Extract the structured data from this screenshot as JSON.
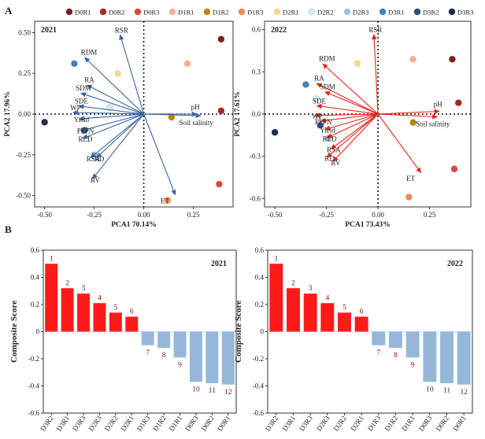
{
  "legend": [
    {
      "name": "D0R1",
      "color": "#7B1F1F"
    },
    {
      "name": "D0R2",
      "color": "#A32A2A"
    },
    {
      "name": "D0R3",
      "color": "#D84B3E"
    },
    {
      "name": "D1R1",
      "color": "#F4AE95"
    },
    {
      "name": "D1R2",
      "color": "#B8860B"
    },
    {
      "name": "D1R3",
      "color": "#F08A5D"
    },
    {
      "name": "D2R1",
      "color": "#F6D68A"
    },
    {
      "name": "D2R2",
      "color": "#D6EAF2"
    },
    {
      "name": "D2R3",
      "color": "#9EC3E0"
    },
    {
      "name": "D3R1",
      "color": "#4A7FC0"
    },
    {
      "name": "D3R2",
      "color": "#2A4E80"
    },
    {
      "name": "D3R3",
      "color": "#1E2E4A"
    }
  ],
  "panel_labels": {
    "a": "A",
    "b": "B"
  },
  "chart_data": [
    {
      "type": "scatter",
      "subtype": "pca_biplot",
      "title": "2021",
      "xlabel": "PCA1 70.14%",
      "ylabel": "PCA2 17.96%",
      "xlim": [
        -0.55,
        0.45
      ],
      "ylim": [
        -0.57,
        0.57
      ],
      "xticks": [
        -0.5,
        -0.25,
        0,
        0.25
      ],
      "xtick_labels": [
        "-0.50",
        "-0.25",
        "0.00",
        "0.25"
      ],
      "yticks": [
        -0.5,
        -0.25,
        0,
        0.25,
        0.5
      ],
      "ytick_labels": [
        "-0.50",
        "-0.25",
        "0.00",
        "0.25",
        "0.50"
      ],
      "arrow_color": "#3A63A6",
      "vectors": [
        {
          "name": "RSR",
          "x": -0.12,
          "y": 0.49
        },
        {
          "name": "RDM",
          "x": -0.3,
          "y": 0.35
        },
        {
          "name": "RA",
          "x": -0.29,
          "y": 0.18
        },
        {
          "name": "SDM",
          "x": -0.32,
          "y": 0.13
        },
        {
          "name": "SDE",
          "x": -0.33,
          "y": 0.05
        },
        {
          "name": "WP",
          "x": -0.36,
          "y": 0.01
        },
        {
          "name": "Yield",
          "x": -0.33,
          "y": -0.03
        },
        {
          "name": "PFPN",
          "x": -0.31,
          "y": -0.1
        },
        {
          "name": "RLD",
          "x": -0.31,
          "y": -0.15
        },
        {
          "name": "RSA",
          "x": -0.27,
          "y": -0.27
        },
        {
          "name": "RD",
          "x": -0.24,
          "y": -0.27
        },
        {
          "name": "RV",
          "x": -0.26,
          "y": -0.4
        },
        {
          "name": "pH",
          "x": 0.27,
          "y": 0.0
        },
        {
          "name": "Soil salinity",
          "x": 0.29,
          "y": -0.01
        },
        {
          "name": "ET",
          "x": 0.16,
          "y": -0.5
        }
      ],
      "points": [
        {
          "group": "D0R1",
          "x": 0.39,
          "y": 0.46
        },
        {
          "group": "D0R2",
          "x": 0.39,
          "y": 0.02
        },
        {
          "group": "D0R3",
          "x": 0.38,
          "y": -0.43
        },
        {
          "group": "D1R1",
          "x": 0.22,
          "y": 0.31
        },
        {
          "group": "D1R2",
          "x": 0.14,
          "y": -0.02
        },
        {
          "group": "D1R3",
          "x": 0.12,
          "y": -0.53
        },
        {
          "group": "D2R1",
          "x": -0.13,
          "y": 0.25
        },
        {
          "group": "D2R2",
          "x": -0.17,
          "y": 0.04
        },
        {
          "group": "D2R3",
          "x": -0.25,
          "y": -0.25
        },
        {
          "group": "D3R1",
          "x": -0.35,
          "y": 0.31
        },
        {
          "group": "D3R2",
          "x": -0.3,
          "y": -0.1
        },
        {
          "group": "D3R3",
          "x": -0.5,
          "y": -0.05
        }
      ]
    },
    {
      "type": "scatter",
      "subtype": "pca_biplot",
      "title": "2022",
      "xlabel": "PCA1 73.43%",
      "ylabel": "PCA2 17.61%",
      "xlim": [
        -0.55,
        0.45
      ],
      "ylim": [
        -0.66,
        0.66
      ],
      "xticks": [
        -0.5,
        -0.25,
        0,
        0.25
      ],
      "xtick_labels": [
        "-0.50",
        "-0.25",
        "0.00",
        "0.25"
      ],
      "yticks": [
        -0.6,
        -0.3,
        0,
        0.3,
        0.6
      ],
      "ytick_labels": [
        "-0.6",
        "-0.3",
        "0.0",
        "0.3",
        "0.6"
      ],
      "arrow_color": "#E8231B",
      "vectors": [
        {
          "name": "RSR",
          "x": -0.02,
          "y": 0.57
        },
        {
          "name": "RDM",
          "x": -0.27,
          "y": 0.36
        },
        {
          "name": "RA",
          "x": -0.3,
          "y": 0.22
        },
        {
          "name": "SDM",
          "x": -0.26,
          "y": 0.16
        },
        {
          "name": "SDE",
          "x": -0.3,
          "y": 0.06
        },
        {
          "name": "WP",
          "x": -0.31,
          "y": -0.01
        },
        {
          "name": "PFPN",
          "x": -0.28,
          "y": -0.05
        },
        {
          "name": "Yield",
          "x": -0.26,
          "y": -0.11
        },
        {
          "name": "RLD",
          "x": -0.25,
          "y": -0.17
        },
        {
          "name": "RSA",
          "x": -0.23,
          "y": -0.25
        },
        {
          "name": "RD",
          "x": -0.25,
          "y": -0.31
        },
        {
          "name": "RV",
          "x": -0.22,
          "y": -0.34
        },
        {
          "name": "pH",
          "x": 0.3,
          "y": 0.02
        },
        {
          "name": "Soil salinity",
          "x": 0.29,
          "y": -0.02
        },
        {
          "name": "ET",
          "x": 0.21,
          "y": -0.42
        }
      ],
      "points": [
        {
          "group": "D0R1",
          "x": 0.36,
          "y": 0.39
        },
        {
          "group": "D0R2",
          "x": 0.39,
          "y": 0.08
        },
        {
          "group": "D0R3",
          "x": 0.37,
          "y": -0.39
        },
        {
          "group": "D1R1",
          "x": 0.17,
          "y": 0.39
        },
        {
          "group": "D1R2",
          "x": 0.17,
          "y": -0.06
        },
        {
          "group": "D1R3",
          "x": 0.15,
          "y": -0.59
        },
        {
          "group": "D2R1",
          "x": -0.1,
          "y": 0.36
        },
        {
          "group": "D2R2",
          "x": -0.3,
          "y": 0.11
        },
        {
          "group": "D2R3",
          "x": -0.24,
          "y": -0.17
        },
        {
          "group": "D3R1",
          "x": -0.35,
          "y": 0.21
        },
        {
          "group": "D3R2",
          "x": -0.28,
          "y": -0.08
        },
        {
          "group": "D3R3",
          "x": -0.5,
          "y": -0.13
        }
      ]
    },
    {
      "type": "bar",
      "title": "2021",
      "xlabel": "",
      "ylabel": "Composite Score",
      "ylim": [
        -0.6,
        0.6
      ],
      "yticks": [
        -0.6,
        -0.4,
        -0.2,
        0,
        0.2,
        0.4,
        0.6
      ],
      "ytick_labels": [
        "-0.6",
        "-0.4",
        "-0.2",
        "0",
        "0.2",
        "0.4",
        "0.6"
      ],
      "categories": [
        "D3R2",
        "D3R1",
        "D3R3",
        "D2R3",
        "D2R2",
        "D2R1",
        "D1R3",
        "D1R2",
        "D1R1",
        "D0R3",
        "D0R2",
        "D0R1"
      ],
      "values": [
        0.5,
        0.32,
        0.28,
        0.21,
        0.14,
        0.11,
        -0.1,
        -0.12,
        -0.19,
        -0.37,
        -0.38,
        -0.39
      ],
      "ranks": [
        "1",
        "2",
        "3",
        "4",
        "5",
        "6",
        "7",
        "8",
        "9",
        "10",
        "11",
        "12"
      ],
      "positive_color": "#FF1A1A",
      "negative_color": "#95B7D9"
    },
    {
      "type": "bar",
      "title": "2022",
      "xlabel": "",
      "ylabel": "Composite Score",
      "ylim": [
        -0.6,
        0.6
      ],
      "yticks": [
        -0.6,
        -0.4,
        -0.2,
        0,
        0.2,
        0.4,
        0.6
      ],
      "ytick_labels": [
        "-0.6",
        "-0.4",
        "-0.2",
        "0",
        "0.2",
        "0.4",
        "0.6"
      ],
      "categories": [
        "D3R2",
        "D3R1",
        "D3R3",
        "D2R3",
        "D2R2",
        "D2R1",
        "D1R3",
        "D1R2",
        "D1R1",
        "D0R3",
        "D0R2",
        "D0R1"
      ],
      "values": [
        0.5,
        0.32,
        0.28,
        0.21,
        0.14,
        0.11,
        -0.1,
        -0.12,
        -0.19,
        -0.37,
        -0.38,
        -0.39
      ],
      "ranks": [
        "1",
        "2",
        "3",
        "4",
        "5",
        "6",
        "7",
        "8",
        "9",
        "10",
        "11",
        "12"
      ],
      "positive_color": "#FF1A1A",
      "negative_color": "#95B7D9"
    }
  ]
}
